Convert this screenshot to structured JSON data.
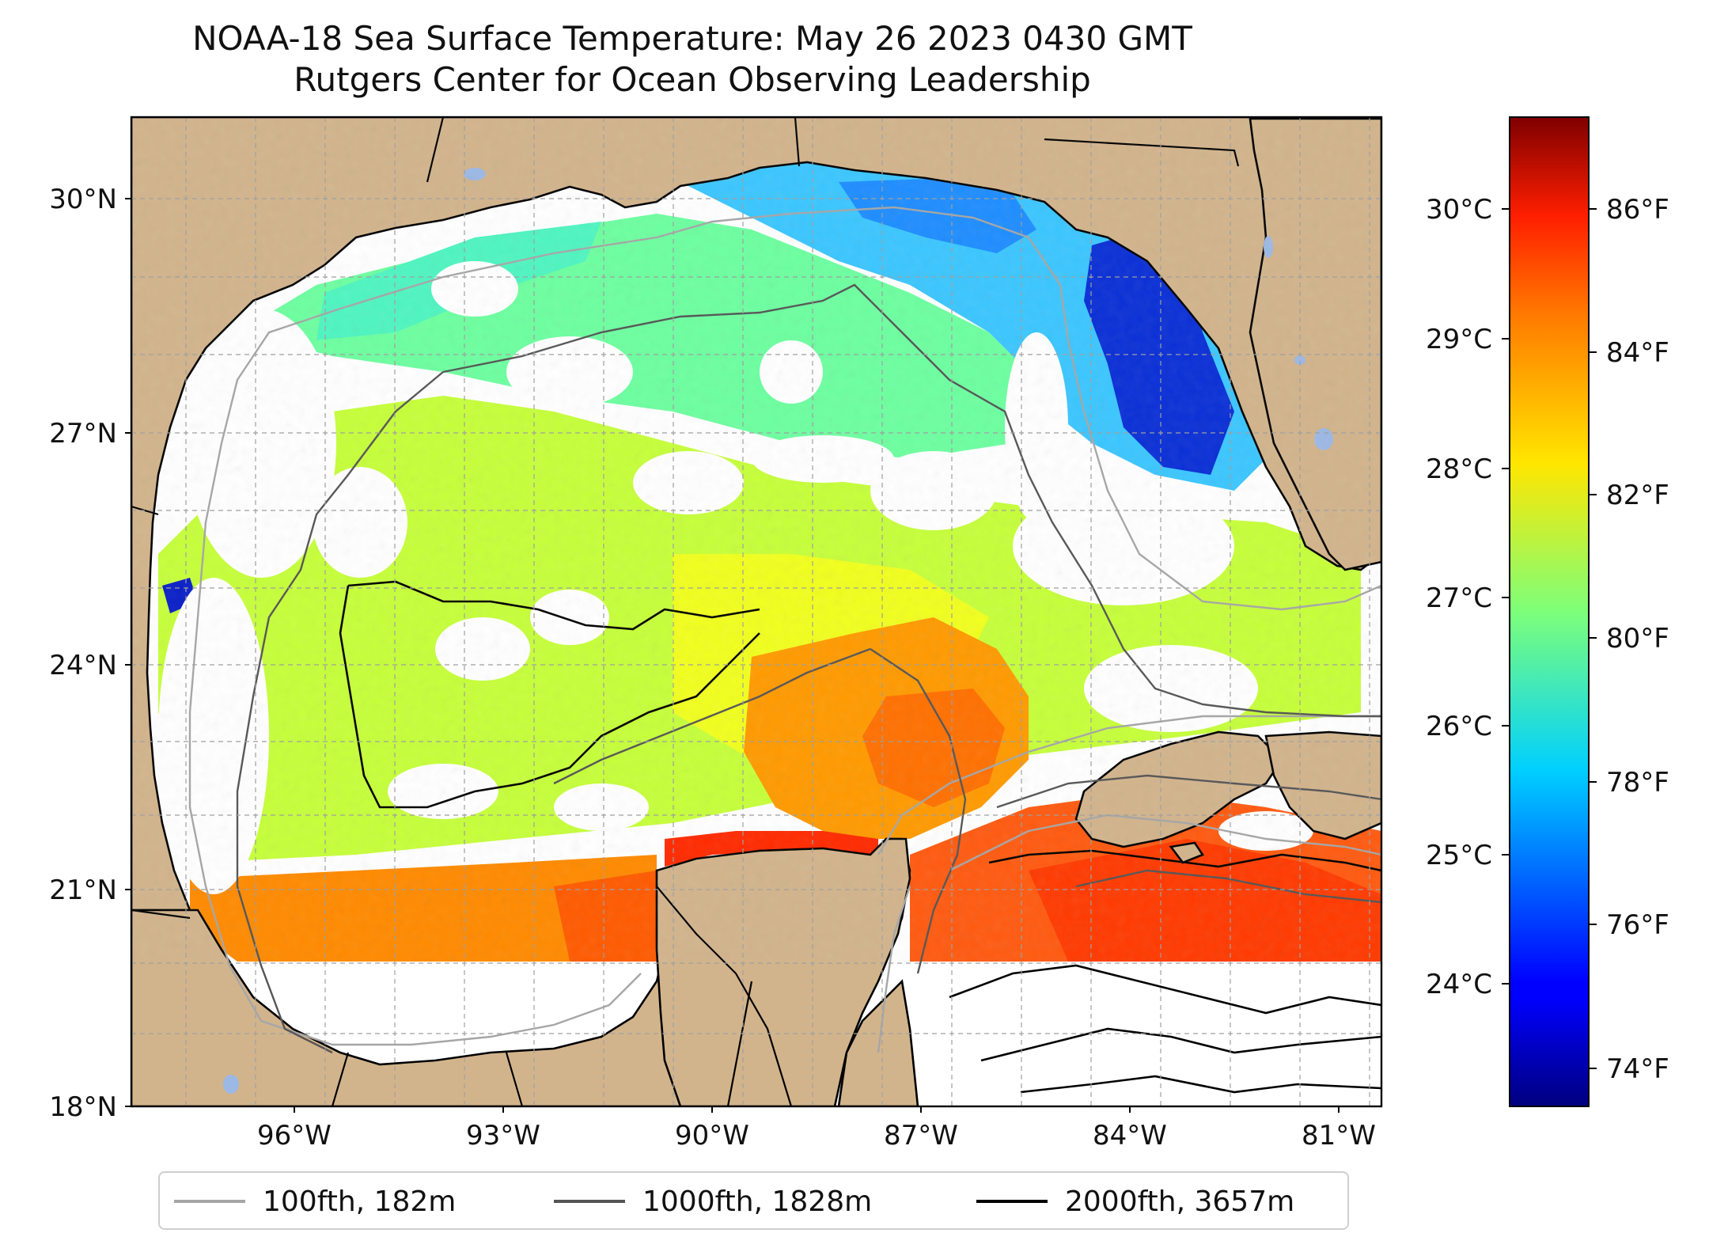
{
  "title": {
    "line1": "NOAA-18 Sea Surface Temperature: May 26 2023 0430 GMT",
    "line2": "Rutgers Center for Ocean Observing Leadership"
  },
  "axes": {
    "lat_labels": [
      "30°N",
      "27°N",
      "24°N",
      "21°N",
      "18°N"
    ],
    "lon_labels": [
      "96°W",
      "93°W",
      "90°W",
      "87°W",
      "84°W",
      "81°W"
    ]
  },
  "colorbar": {
    "celsius_labels": [
      "30°C",
      "29°C",
      "28°C",
      "27°C",
      "26°C",
      "25°C",
      "24°C"
    ],
    "fahrenheit_labels": [
      "86°F",
      "84°F",
      "82°F",
      "80°F",
      "78°F",
      "76°F",
      "74°F"
    ],
    "range_f": [
      73.4,
      87.4
    ],
    "colormap": "jet"
  },
  "legend": {
    "items": [
      {
        "label": "100fth, 182m",
        "color": "#a6a6a6"
      },
      {
        "label": "1000fth, 1828m",
        "color": "#555555"
      },
      {
        "label": "2000fth, 3657m",
        "color": "#000000"
      }
    ]
  },
  "colors": {
    "land": "#d2b48c",
    "no_data": "#ffffff",
    "lakes": "#9cb8e4",
    "grid": "#b0b0b0"
  },
  "map": {
    "extent": {
      "lon": [
        -98.3,
        -80.3
      ],
      "lat": [
        18.0,
        31.0
      ]
    }
  }
}
